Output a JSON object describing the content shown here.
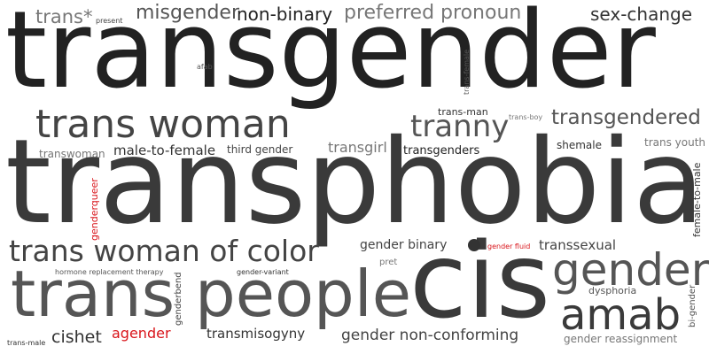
{
  "colors": {
    "background": "#ffffff",
    "accent": "#d9151b"
  },
  "words": [
    {
      "id": "transgender",
      "text": "transgender",
      "color": "#222222"
    },
    {
      "id": "transphobia",
      "text": "transphobia",
      "color": "#3a3a3a"
    },
    {
      "id": "cis",
      "text": "cis",
      "color": "#3a3a3a"
    },
    {
      "id": "trans-people",
      "text": "trans people",
      "color": "#555555"
    },
    {
      "id": "trans-woman",
      "text": "trans woman",
      "color": "#444444"
    },
    {
      "id": "trans-woman-of-color",
      "text": "trans woman of color",
      "color": "#444444"
    },
    {
      "id": "gender",
      "text": "gender",
      "color": "#555555"
    },
    {
      "id": "amab",
      "text": "amab",
      "color": "#3a3a3a"
    },
    {
      "id": "tranny",
      "text": "tranny",
      "color": "#555555"
    },
    {
      "id": "transgendered",
      "text": "transgendered",
      "color": "#555555"
    },
    {
      "id": "misgender",
      "text": "misgender",
      "color": "#555555"
    },
    {
      "id": "non-binary",
      "text": "non-binary",
      "color": "#222222"
    },
    {
      "id": "preferred-pronoun",
      "text": "preferred pronoun",
      "color": "#777777"
    },
    {
      "id": "sex-change",
      "text": "sex-change",
      "color": "#333333"
    },
    {
      "id": "trans-star",
      "text": "trans*",
      "color": "#777777"
    },
    {
      "id": "present",
      "text": "present",
      "color": "#444444"
    },
    {
      "id": "afab",
      "text": "afab",
      "color": "#555555"
    },
    {
      "id": "trans-female",
      "text": "trans-female",
      "color": "#555555"
    },
    {
      "id": "trans-man",
      "text": "trans-man",
      "color": "#333333"
    },
    {
      "id": "trans-boy",
      "text": "trans-boy",
      "color": "#777777"
    },
    {
      "id": "transwoman",
      "text": "transwoman",
      "color": "#777777"
    },
    {
      "id": "male-to-female",
      "text": "male-to-female",
      "color": "#333333"
    },
    {
      "id": "third-gender",
      "text": "third gender",
      "color": "#444444"
    },
    {
      "id": "transgirl",
      "text": "transgirl",
      "color": "#777777"
    },
    {
      "id": "transgenders",
      "text": "transgenders",
      "color": "#222222"
    },
    {
      "id": "shemale",
      "text": "shemale",
      "color": "#333333"
    },
    {
      "id": "trans-youth",
      "text": "trans youth",
      "color": "#777777"
    },
    {
      "id": "genderqueer",
      "text": "genderqueer",
      "color": "#d9151b"
    },
    {
      "id": "female-to-male",
      "text": "female-to-male",
      "color": "#333333"
    },
    {
      "id": "gender-binary",
      "text": "gender binary",
      "color": "#444444"
    },
    {
      "id": "gender-fluid",
      "text": "gender fluid",
      "color": "#d9151b"
    },
    {
      "id": "transsexual",
      "text": "transsexual",
      "color": "#444444"
    },
    {
      "id": "pret",
      "text": "pret",
      "color": "#777777"
    },
    {
      "id": "hormone-replacement-therapy",
      "text": "hormone replacement therapy",
      "color": "#555555"
    },
    {
      "id": "gender-variant",
      "text": "gender-variant",
      "color": "#333333"
    },
    {
      "id": "genderbend",
      "text": "genderbend",
      "color": "#444444"
    },
    {
      "id": "dysphoria",
      "text": "dysphoria",
      "color": "#555555"
    },
    {
      "id": "bi-gender",
      "text": "bi-gender",
      "color": "#555555"
    },
    {
      "id": "trans-male",
      "text": "trans-male",
      "color": "#333333"
    },
    {
      "id": "cishet",
      "text": "cishet",
      "color": "#333333"
    },
    {
      "id": "agender",
      "text": "agender",
      "color": "#d9151b"
    },
    {
      "id": "transmisogyny",
      "text": "transmisogyny",
      "color": "#333333"
    },
    {
      "id": "gender-non-conforming",
      "text": "gender non-conforming",
      "color": "#444444"
    },
    {
      "id": "gender-reassignment",
      "text": "gender reassignment",
      "color": "#777777"
    }
  ]
}
